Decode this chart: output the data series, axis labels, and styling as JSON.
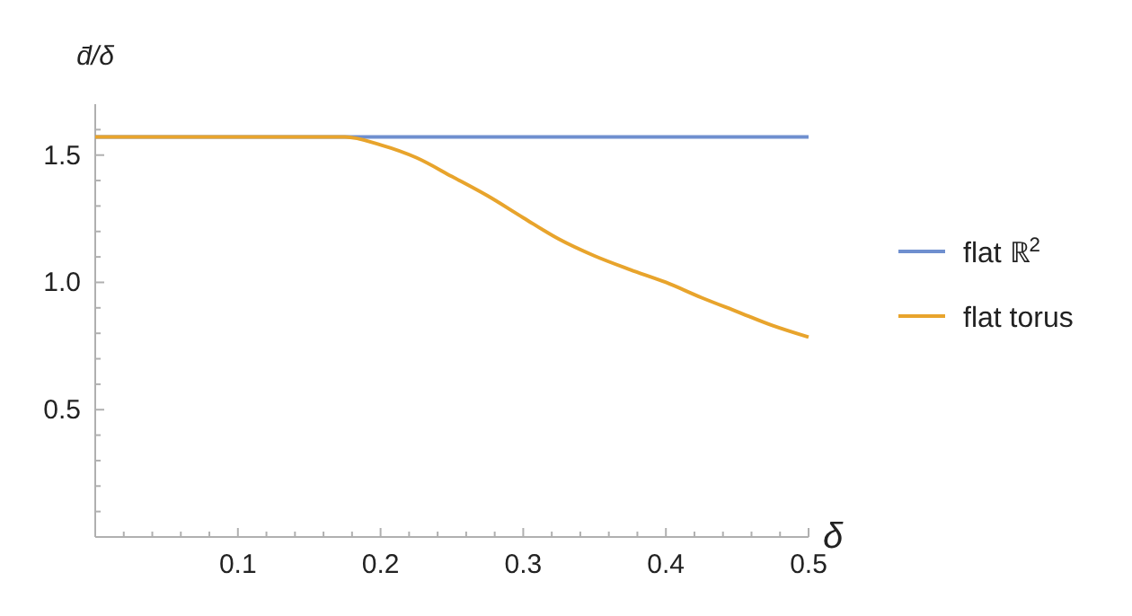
{
  "chart_data": {
    "type": "line",
    "xlabel": "δ",
    "ylabel": "d̄/δ",
    "xlim": [
      0,
      0.5
    ],
    "ylim": [
      0,
      1.7
    ],
    "xticks": [
      {
        "value": 0.02,
        "label": null
      },
      {
        "value": 0.04,
        "label": null
      },
      {
        "value": 0.06,
        "label": null
      },
      {
        "value": 0.08,
        "label": null
      },
      0.1,
      {
        "value": 0.12,
        "label": null
      },
      {
        "value": 0.14,
        "label": null
      },
      {
        "value": 0.16,
        "label": null
      },
      {
        "value": 0.18,
        "label": null
      },
      0.2,
      {
        "value": 0.22,
        "label": null
      },
      {
        "value": 0.24,
        "label": null
      },
      {
        "value": 0.26,
        "label": null
      },
      {
        "value": 0.28,
        "label": null
      },
      0.3,
      {
        "value": 0.32,
        "label": null
      },
      {
        "value": 0.34,
        "label": null
      },
      {
        "value": 0.36,
        "label": null
      },
      {
        "value": 0.38,
        "label": null
      },
      0.4,
      {
        "value": 0.42,
        "label": null
      },
      {
        "value": 0.44,
        "label": null
      },
      {
        "value": 0.46,
        "label": null
      },
      {
        "value": 0.48,
        "label": null
      },
      0.5
    ],
    "yticks": [
      {
        "value": 0.1,
        "label": null
      },
      {
        "value": 0.2,
        "label": null
      },
      {
        "value": 0.3,
        "label": null
      },
      {
        "value": 0.4,
        "label": null
      },
      0.5,
      {
        "value": 0.6,
        "label": null
      },
      {
        "value": 0.7,
        "label": null
      },
      {
        "value": 0.8,
        "label": null
      },
      {
        "value": 0.9,
        "label": null
      },
      {
        "value": 1,
        "label": "1.0"
      },
      {
        "value": 1.1,
        "label": null
      },
      {
        "value": 1.2,
        "label": null
      },
      {
        "value": 1.3,
        "label": null
      },
      {
        "value": 1.4,
        "label": null
      },
      1.5,
      {
        "value": 1.6,
        "label": null
      }
    ],
    "grid": false,
    "legend": "right",
    "series": [
      {
        "name": "flat ℝ$^{2}$",
        "color": "#6f8fcf",
        "x": [
          0,
          0.5
        ],
        "values": [
          1.571,
          1.571
        ]
      },
      {
        "name": "flat torus",
        "color": "#e8a42c",
        "x": [
          0,
          0.175,
          0.2,
          0.225,
          0.25,
          0.275,
          0.3,
          0.325,
          0.35,
          0.375,
          0.4,
          0.425,
          0.45,
          0.475,
          0.5
        ],
        "values": [
          1.571,
          1.571,
          1.54,
          1.49,
          1.416,
          1.34,
          1.254,
          1.17,
          1.104,
          1.05,
          1.0,
          0.94,
          0.885,
          0.83,
          0.785
        ]
      }
    ]
  }
}
